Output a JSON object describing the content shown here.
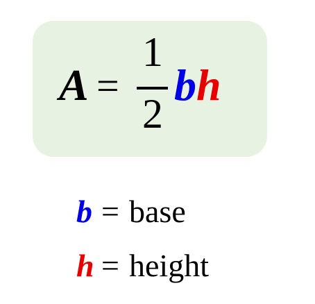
{
  "formula": {
    "lhs": "A",
    "equals": "=",
    "numerator": "1",
    "denominator": "2",
    "base_var": "b",
    "height_var": "h"
  },
  "definitions": [
    {
      "var": "b",
      "equals": "=",
      "text": "base"
    },
    {
      "var": "h",
      "equals": "=",
      "text": "height"
    }
  ],
  "colors": {
    "box_background": "#e8f2e2",
    "base_var": "#0000e6",
    "height_var": "#e60000",
    "text": "#000000"
  }
}
